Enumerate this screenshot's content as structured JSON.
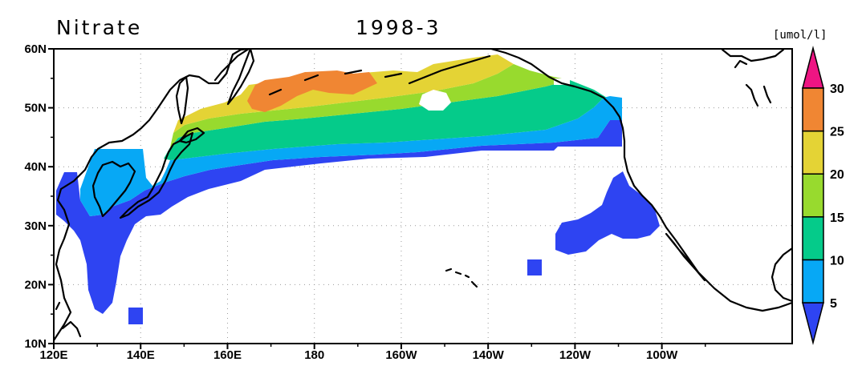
{
  "header": {
    "variable": "Nitrate",
    "date": "1998-3",
    "unit": "[umol/l]"
  },
  "map": {
    "lon_range": [
      120,
      290
    ],
    "lat_range": [
      10,
      60
    ],
    "x_ticks": [
      {
        "lon": 120,
        "label": "120E"
      },
      {
        "lon": 140,
        "label": "140E"
      },
      {
        "lon": 160,
        "label": "160E"
      },
      {
        "lon": 180,
        "label": "180"
      },
      {
        "lon": 200,
        "label": "160W"
      },
      {
        "lon": 220,
        "label": "140W"
      },
      {
        "lon": 240,
        "label": "120W"
      },
      {
        "lon": 260,
        "label": "100W"
      }
    ],
    "y_ticks": [
      {
        "lat": 60,
        "label": "60N"
      },
      {
        "lat": 50,
        "label": "50N"
      },
      {
        "lat": 40,
        "label": "40N"
      },
      {
        "lat": 30,
        "label": "30N"
      },
      {
        "lat": 20,
        "label": "20N"
      },
      {
        "lat": 10,
        "label": "10N"
      }
    ],
    "grid": "dotted"
  },
  "colorbar": {
    "levels": [
      5,
      10,
      15,
      20,
      25,
      30
    ],
    "labels": [
      "5",
      "10",
      "15",
      "20",
      "25",
      "30"
    ],
    "colors": [
      "#2e44f2",
      "#07a8f5",
      "#05cb8a",
      "#98da2e",
      "#e4d335",
      "#f08633",
      "#ee1583"
    ],
    "extend": "both"
  }
}
